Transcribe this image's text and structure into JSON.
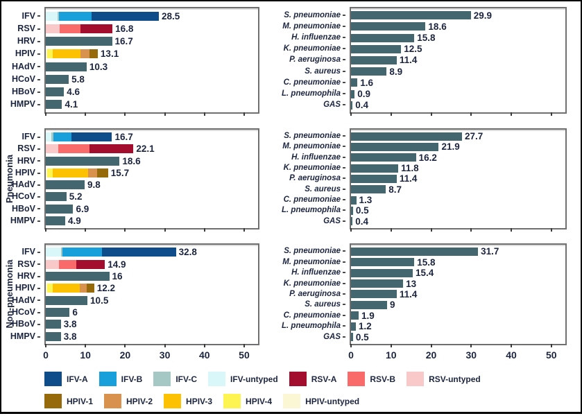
{
  "chart_data": {
    "type": "bar",
    "orientation": "horizontal",
    "x_axis": {
      "ticks": [
        0,
        10,
        20,
        30,
        40,
        50
      ],
      "max": 53.5
    },
    "bar_color_key": "bar",
    "colors": {
      "IFV-A": "#0e4d8a",
      "IFV-B": "#199fd9",
      "IFV-C": "#a6c8c4",
      "IFV-untyped": "#d9f6f8",
      "RSV-A": "#a40e2e",
      "RSV-B": "#f96a6a",
      "RSV-untyped": "#f9c8c8",
      "HPIV-1": "#96690a",
      "HPIV-2": "#d9914e",
      "HPIV-3": "#fcc201",
      "HPIV-4": "#fdf351",
      "HPIV-untyped": "#fbf7d5",
      "bar": "#44666e"
    },
    "legend": {
      "rows": [
        [
          {
            "label": "IFV-A",
            "color_key": "IFV-A"
          },
          {
            "label": "IFV-B",
            "color_key": "IFV-B"
          },
          {
            "label": "IFV-C",
            "color_key": "IFV-C"
          },
          {
            "label": "IFV-untyped",
            "color_key": "IFV-untyped"
          },
          {
            "label": "RSV-A",
            "color_key": "RSV-A"
          },
          {
            "label": "RSV-B",
            "color_key": "RSV-B"
          },
          {
            "label": "RSV-untyped",
            "color_key": "RSV-untyped"
          }
        ],
        [
          {
            "label": "HPIV-1",
            "color_key": "HPIV-1"
          },
          {
            "label": "HPIV-2",
            "color_key": "HPIV-2"
          },
          {
            "label": "HPIV-3",
            "color_key": "HPIV-3"
          },
          {
            "label": "HPIV-4",
            "color_key": "HPIV-4"
          },
          {
            "label": "HPIV-untyped",
            "color_key": "HPIV-untyped"
          }
        ]
      ]
    },
    "rows": [
      {
        "label": "",
        "viruses": {
          "bars": [
            {
              "label": "IFV",
              "value": 28.5,
              "display": "28.5",
              "segments": [
                {
                  "key": "IFV-untyped",
                  "value": 3.0
                },
                {
                  "key": "IFV-C",
                  "value": 0.4
                },
                {
                  "key": "IFV-B",
                  "value": 8.2
                },
                {
                  "key": "IFV-A",
                  "value": 16.9
                }
              ]
            },
            {
              "label": "RSV",
              "value": 16.8,
              "display": "16.8",
              "segments": [
                {
                  "key": "RSV-untyped",
                  "value": 3.5
                },
                {
                  "key": "RSV-B",
                  "value": 5.2
                },
                {
                  "key": "RSV-A",
                  "value": 8.1
                }
              ]
            },
            {
              "label": "HRV",
              "value": 16.7,
              "display": "16.7",
              "segments": [
                {
                  "key": "bar",
                  "value": 16.7
                }
              ]
            },
            {
              "label": "HPIV",
              "value": 13.1,
              "display": "13.1",
              "segments": [
                {
                  "key": "HPIV-untyped",
                  "value": 0.3
                },
                {
                  "key": "HPIV-4",
                  "value": 1.5
                },
                {
                  "key": "HPIV-3",
                  "value": 6.9
                },
                {
                  "key": "HPIV-2",
                  "value": 2.4
                },
                {
                  "key": "HPIV-1",
                  "value": 2.0
                }
              ]
            },
            {
              "label": "HAdV",
              "value": 10.3,
              "display": "10.3",
              "segments": [
                {
                  "key": "bar",
                  "value": 10.3
                }
              ]
            },
            {
              "label": "HCoV",
              "value": 5.8,
              "display": "5.8",
              "segments": [
                {
                  "key": "bar",
                  "value": 5.8
                }
              ]
            },
            {
              "label": "HBoV",
              "value": 4.6,
              "display": "4.6",
              "segments": [
                {
                  "key": "bar",
                  "value": 4.6
                }
              ]
            },
            {
              "label": "HMPV",
              "value": 4.1,
              "display": "4.1",
              "segments": [
                {
                  "key": "bar",
                  "value": 4.1
                }
              ]
            }
          ]
        },
        "bacteria": {
          "bars": [
            {
              "label": "S. pneumoniae",
              "value": 29.9,
              "display": "29.9"
            },
            {
              "label": "M. pneumoniae",
              "value": 18.6,
              "display": "18.6"
            },
            {
              "label": "H. influenzae",
              "value": 15.8,
              "display": "15.8"
            },
            {
              "label": "K. pneumoniae",
              "value": 12.5,
              "display": "12.5"
            },
            {
              "label": "P. aeruginosa",
              "value": 11.4,
              "display": "11.4"
            },
            {
              "label": "S. aureus",
              "value": 8.9,
              "display": "8.9"
            },
            {
              "label": "C. pneumoniae",
              "value": 1.6,
              "display": "1.6"
            },
            {
              "label": "L. pneumophila",
              "value": 0.9,
              "display": "0.9"
            },
            {
              "label": "GAS",
              "value": 0.4,
              "display": "0.4"
            }
          ]
        }
      },
      {
        "label": "Pneumonia",
        "viruses": {
          "bars": [
            {
              "label": "IFV",
              "value": 16.7,
              "display": "16.7",
              "segments": [
                {
                  "key": "IFV-untyped",
                  "value": 1.4
                },
                {
                  "key": "IFV-C",
                  "value": 0.5
                },
                {
                  "key": "IFV-B",
                  "value": 4.6
                },
                {
                  "key": "IFV-A",
                  "value": 10.2
                }
              ]
            },
            {
              "label": "RSV",
              "value": 22.1,
              "display": "22.1",
              "segments": [
                {
                  "key": "RSV-untyped",
                  "value": 3.1
                },
                {
                  "key": "RSV-B",
                  "value": 8.0
                },
                {
                  "key": "RSV-A",
                  "value": 11.0
                }
              ]
            },
            {
              "label": "HRV",
              "value": 18.6,
              "display": "18.6",
              "segments": [
                {
                  "key": "bar",
                  "value": 18.6
                }
              ]
            },
            {
              "label": "HPIV",
              "value": 15.7,
              "display": "15.7",
              "segments": [
                {
                  "key": "HPIV-untyped",
                  "value": 0.4
                },
                {
                  "key": "HPIV-4",
                  "value": 1.4
                },
                {
                  "key": "HPIV-3",
                  "value": 8.8
                },
                {
                  "key": "HPIV-2",
                  "value": 2.4
                },
                {
                  "key": "HPIV-1",
                  "value": 2.7
                }
              ]
            },
            {
              "label": "HAdV",
              "value": 9.8,
              "display": "9.8",
              "segments": [
                {
                  "key": "bar",
                  "value": 9.8
                }
              ]
            },
            {
              "label": "HCoV",
              "value": 5.2,
              "display": "5.2",
              "segments": [
                {
                  "key": "bar",
                  "value": 5.2
                }
              ]
            },
            {
              "label": "HBoV",
              "value": 6.9,
              "display": "6.9",
              "segments": [
                {
                  "key": "bar",
                  "value": 6.9
                }
              ]
            },
            {
              "label": "HMPV",
              "value": 4.9,
              "display": "4.9",
              "segments": [
                {
                  "key": "bar",
                  "value": 4.9
                }
              ]
            }
          ]
        },
        "bacteria": {
          "bars": [
            {
              "label": "S. pneumoniae",
              "value": 27.7,
              "display": "27.7"
            },
            {
              "label": "M. pneumoniae",
              "value": 21.9,
              "display": "21.9"
            },
            {
              "label": "H. influenzae",
              "value": 16.2,
              "display": "16.2"
            },
            {
              "label": "K. pneumoniae",
              "value": 11.8,
              "display": "11.8"
            },
            {
              "label": "P. aeruginosa",
              "value": 11.4,
              "display": "11.4"
            },
            {
              "label": "S. aureus",
              "value": 8.7,
              "display": "8.7"
            },
            {
              "label": "C. pneumoniae",
              "value": 1.3,
              "display": "1.3"
            },
            {
              "label": "L. pneumophila",
              "value": 0.5,
              "display": "0.5"
            },
            {
              "label": "GAS",
              "value": 0.4,
              "display": "0.4"
            }
          ]
        }
      },
      {
        "label": "Non-pneumonia",
        "viruses": {
          "bars": [
            {
              "label": "IFV",
              "value": 32.8,
              "display": "32.8",
              "segments": [
                {
                  "key": "IFV-untyped",
                  "value": 3.8
                },
                {
                  "key": "IFV-C",
                  "value": 0.4
                },
                {
                  "key": "IFV-B",
                  "value": 10.0
                },
                {
                  "key": "IFV-A",
                  "value": 18.6
                }
              ]
            },
            {
              "label": "RSV",
              "value": 14.9,
              "display": "14.9",
              "segments": [
                {
                  "key": "RSV-untyped",
                  "value": 3.3
                },
                {
                  "key": "RSV-B",
                  "value": 4.4
                },
                {
                  "key": "RSV-A",
                  "value": 7.2
                }
              ]
            },
            {
              "label": "HRV",
              "value": 16,
              "display": "16",
              "segments": [
                {
                  "key": "bar",
                  "value": 16
                }
              ]
            },
            {
              "label": "HPIV",
              "value": 12.2,
              "display": "12.2",
              "segments": [
                {
                  "key": "HPIV-untyped",
                  "value": 0.3
                },
                {
                  "key": "HPIV-4",
                  "value": 1.4
                },
                {
                  "key": "HPIV-3",
                  "value": 6.9
                },
                {
                  "key": "HPIV-2",
                  "value": 1.8
                },
                {
                  "key": "HPIV-1",
                  "value": 1.8
                }
              ]
            },
            {
              "label": "HAdV",
              "value": 10.5,
              "display": "10.5",
              "segments": [
                {
                  "key": "bar",
                  "value": 10.5
                }
              ]
            },
            {
              "label": "HCoV",
              "value": 6,
              "display": "6",
              "segments": [
                {
                  "key": "bar",
                  "value": 6
                }
              ]
            },
            {
              "label": "HBoV",
              "value": 3.8,
              "display": "3.8",
              "segments": [
                {
                  "key": "bar",
                  "value": 3.8
                }
              ]
            },
            {
              "label": "HMPV",
              "value": 3.8,
              "display": "3.8",
              "segments": [
                {
                  "key": "bar",
                  "value": 3.8
                }
              ]
            }
          ]
        },
        "bacteria": {
          "bars": [
            {
              "label": "S. pneumoniae",
              "value": 31.7,
              "display": "31.7"
            },
            {
              "label": "M. pneumoniae",
              "value": 15.8,
              "display": "15.8"
            },
            {
              "label": "H. influenzae",
              "value": 15.4,
              "display": "15.4"
            },
            {
              "label": "K. pneumoniae",
              "value": 13,
              "display": "13"
            },
            {
              "label": "P. aeruginosa",
              "value": 11.4,
              "display": "11.4"
            },
            {
              "label": "S. aureus",
              "value": 9,
              "display": "9"
            },
            {
              "label": "C. pneumoniae",
              "value": 1.9,
              "display": "1.9"
            },
            {
              "label": "L. pneumophila",
              "value": 1.2,
              "display": "1.2"
            },
            {
              "label": "GAS",
              "value": 0.5,
              "display": "0.5"
            }
          ]
        }
      }
    ]
  }
}
